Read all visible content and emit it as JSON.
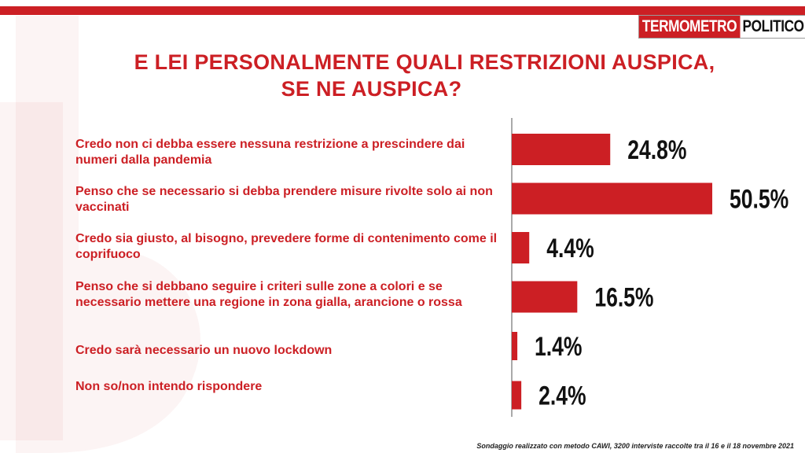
{
  "header": {
    "logo_part1": "TERMOMETRO",
    "logo_part2": "POLITICO",
    "title_line1": "E LEI PERSONALMENTE QUALI RESTRIZIONI AUSPICA,",
    "title_line2": "SE NE AUSPICA?"
  },
  "footnote": "Sondaggio realizzato con metodo CAWI, 3200 interviste raccolte tra il 16 e il 18 novembre 2021",
  "colors": {
    "accent": "#cc1f24",
    "text": "#cc1f24",
    "value_text": "#111111"
  },
  "chart_data": {
    "type": "bar",
    "orientation": "horizontal",
    "categories": [
      "Credo non ci debba essere nessuna restrizione a prescindere dai numeri dalla pandemia",
      "Penso che se necessario si debba prendere misure rivolte solo ai non vaccinati",
      "Credo sia giusto, al bisogno, prevedere forme di contenimento come il coprifuoco",
      "Penso che si debbano seguire i criteri sulle zone a colori e se necessario mettere una regione in zona gialla, arancione o rossa",
      "Credo sarà  necessario un nuovo lockdown",
      "Non so/non intendo rispondere"
    ],
    "values": [
      24.8,
      50.5,
      4.4,
      16.5,
      1.4,
      2.4
    ],
    "value_labels": [
      "24.8%",
      "50.5%",
      "4.4%",
      "16.5%",
      "1.4%",
      "2.4%"
    ],
    "unit": "%",
    "xlim": [
      0,
      55
    ],
    "bar_color": "#cc1f24",
    "grid": false
  }
}
